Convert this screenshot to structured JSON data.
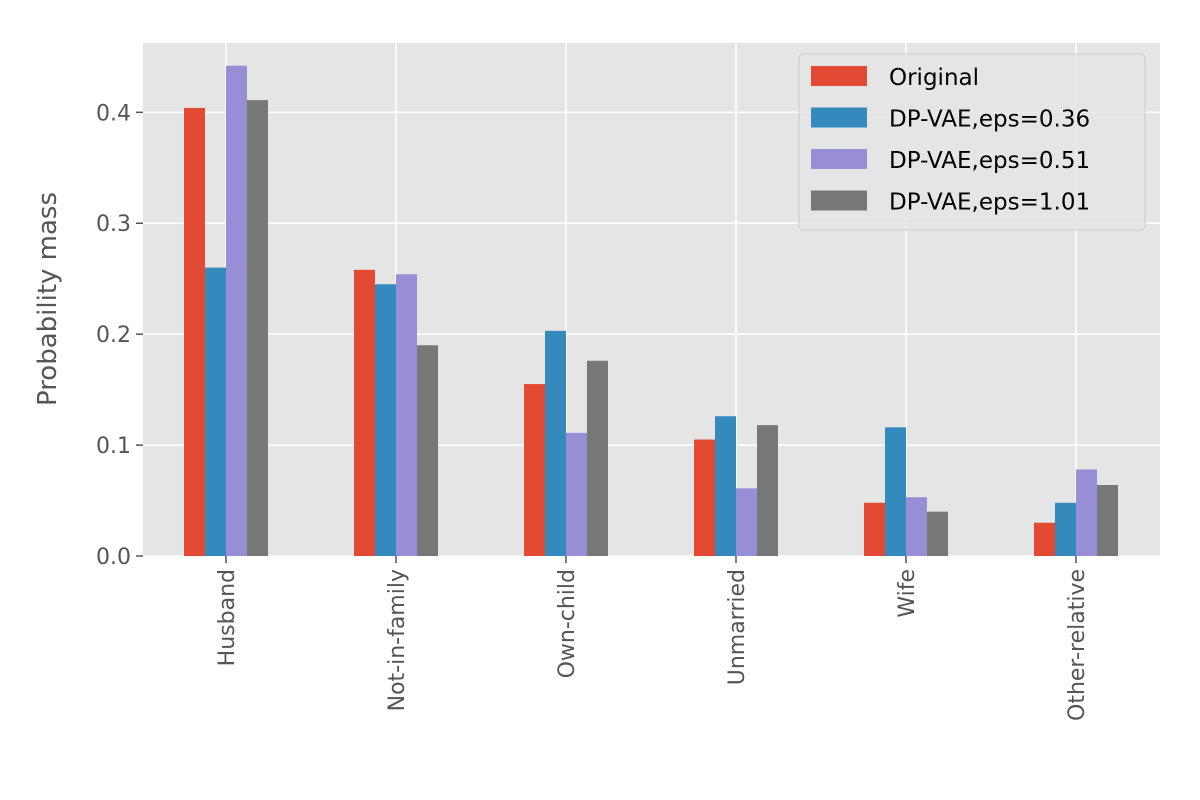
{
  "chart_data": {
    "type": "bar",
    "title": "",
    "xlabel": "",
    "ylabel": "Probability mass",
    "ylim": [
      0,
      0.4625
    ],
    "yticks": [
      0.0,
      0.1,
      0.2,
      0.3,
      0.4
    ],
    "ytick_labels": [
      "0.0",
      "0.1",
      "0.2",
      "0.3",
      "0.4"
    ],
    "grid": true,
    "legend_position": "top-right",
    "categories": [
      "Husband",
      "Not-in-family",
      "Own-child",
      "Unmarried",
      "Wife",
      "Other-relative"
    ],
    "series": [
      {
        "name": "Original",
        "color": "#E24A33",
        "values": [
          0.404,
          0.258,
          0.155,
          0.105,
          0.048,
          0.03
        ]
      },
      {
        "name": "DP-VAE,eps=0.36",
        "color": "#348ABD",
        "values": [
          0.26,
          0.245,
          0.203,
          0.126,
          0.116,
          0.048
        ]
      },
      {
        "name": "DP-VAE,eps=0.51",
        "color": "#988ED5",
        "values": [
          0.442,
          0.254,
          0.111,
          0.061,
          0.053,
          0.078
        ]
      },
      {
        "name": "DP-VAE,eps=1.01",
        "color": "#777777",
        "values": [
          0.411,
          0.19,
          0.176,
          0.118,
          0.04,
          0.064
        ]
      }
    ]
  }
}
